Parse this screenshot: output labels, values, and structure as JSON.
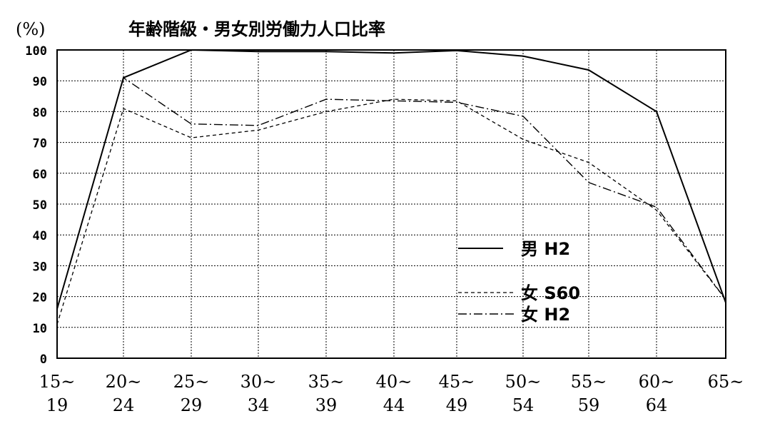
{
  "chart_data": {
    "type": "line",
    "title": "年齢階級・男女別労働力人口比率",
    "unit_label": "(%)",
    "ylim": [
      0,
      100
    ],
    "yticks": [
      0,
      10,
      20,
      30,
      40,
      50,
      60,
      70,
      80,
      90,
      100
    ],
    "grid": true,
    "legend_position": "right-middle",
    "categories": [
      {
        "top": "15~",
        "bottom": "19"
      },
      {
        "top": "20~",
        "bottom": "24"
      },
      {
        "top": "25~",
        "bottom": "29"
      },
      {
        "top": "30~",
        "bottom": "34"
      },
      {
        "top": "35~",
        "bottom": "39"
      },
      {
        "top": "40~",
        "bottom": "44"
      },
      {
        "top": "45~",
        "bottom": "49"
      },
      {
        "top": "50~",
        "bottom": "54"
      },
      {
        "top": "55~",
        "bottom": "59"
      },
      {
        "top": "60~",
        "bottom": "64"
      },
      {
        "top": "65~",
        "bottom": ""
      }
    ],
    "series": [
      {
        "name": "男 H2",
        "style": "solid",
        "values": [
          16,
          91,
          100,
          99.5,
          99.5,
          99,
          99.8,
          98,
          93.5,
          80,
          18
        ]
      },
      {
        "name": "女 S60",
        "style": "dashed",
        "values": [
          11,
          81,
          71.5,
          74,
          80,
          84,
          83.5,
          71,
          63.5,
          48,
          19
        ]
      },
      {
        "name": "女 H2",
        "style": "dashdot",
        "values": [
          16,
          91,
          76,
          75.5,
          84,
          83.5,
          83,
          78.5,
          57,
          49,
          19
        ]
      }
    ]
  }
}
